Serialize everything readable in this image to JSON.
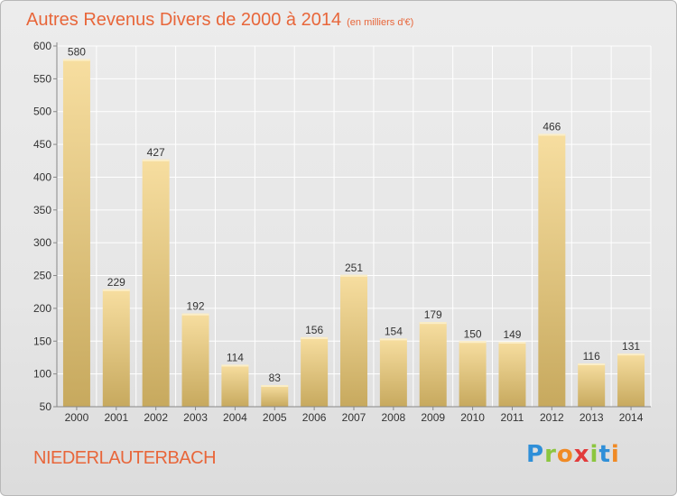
{
  "header": {
    "title": "Autres Revenus Divers de 2000 à 2014",
    "unit": "(en milliers d'€)"
  },
  "footer": {
    "commune": "NIEDERLAUTERBACH",
    "logo": [
      "P",
      "r",
      "o",
      "x",
      "i",
      "t",
      "i"
    ],
    "logo_colors": [
      "#2f8fd8",
      "#8cc63f",
      "#f08a24",
      "#e23b3b",
      "#8cc63f",
      "#2f8fd8",
      "#f08a24"
    ]
  },
  "colors": {
    "title": "#e8663a",
    "bar_top": "#f7dea0",
    "bar_bottom": "#c7a95e",
    "grid": "#ffffff"
  },
  "chart_data": {
    "type": "bar",
    "title": "Autres Revenus Divers de 2000 à 2014",
    "xlabel": "",
    "ylabel": "",
    "categories": [
      "2000",
      "2001",
      "2002",
      "2003",
      "2004",
      "2005",
      "2006",
      "2007",
      "2008",
      "2009",
      "2010",
      "2011",
      "2012",
      "2013",
      "2014"
    ],
    "values": [
      580,
      229,
      427,
      192,
      114,
      83,
      156,
      251,
      154,
      179,
      150,
      149,
      466,
      116,
      131
    ],
    "ylim": [
      50,
      600
    ],
    "yticks": [
      50,
      100,
      150,
      200,
      250,
      300,
      350,
      400,
      450,
      500,
      550,
      600
    ],
    "grid": true
  }
}
